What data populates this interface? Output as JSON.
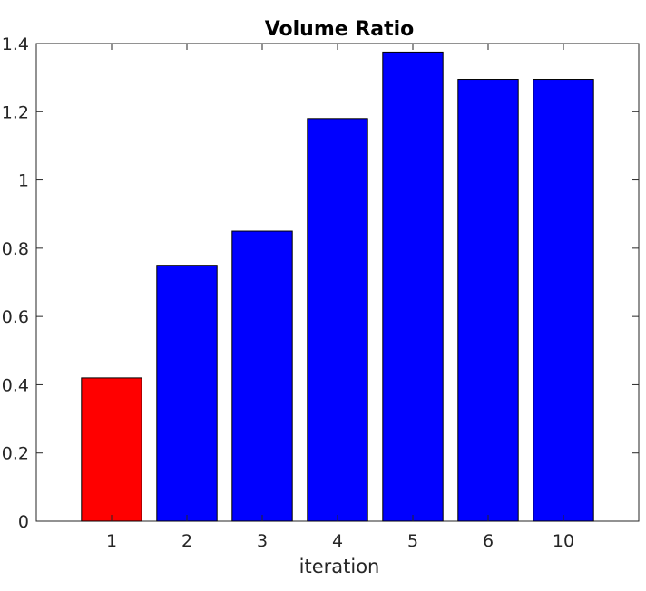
{
  "chart_data": {
    "type": "bar",
    "title": "Volume Ratio",
    "xlabel": "iteration",
    "ylabel": "",
    "categories": [
      "1",
      "2",
      "3",
      "4",
      "5",
      "6",
      "10"
    ],
    "values": [
      0.42,
      0.75,
      0.85,
      1.18,
      1.375,
      1.295,
      1.295
    ],
    "bar_colors": [
      "#ff0000",
      "#0000ff",
      "#0000ff",
      "#0000ff",
      "#0000ff",
      "#0000ff",
      "#0000ff"
    ],
    "ylim": [
      0,
      1.4
    ],
    "yticks": [
      "0",
      "0.2",
      "0.4",
      "0.6",
      "0.8",
      "1",
      "1.2",
      "1.4"
    ],
    "grid": false
  }
}
